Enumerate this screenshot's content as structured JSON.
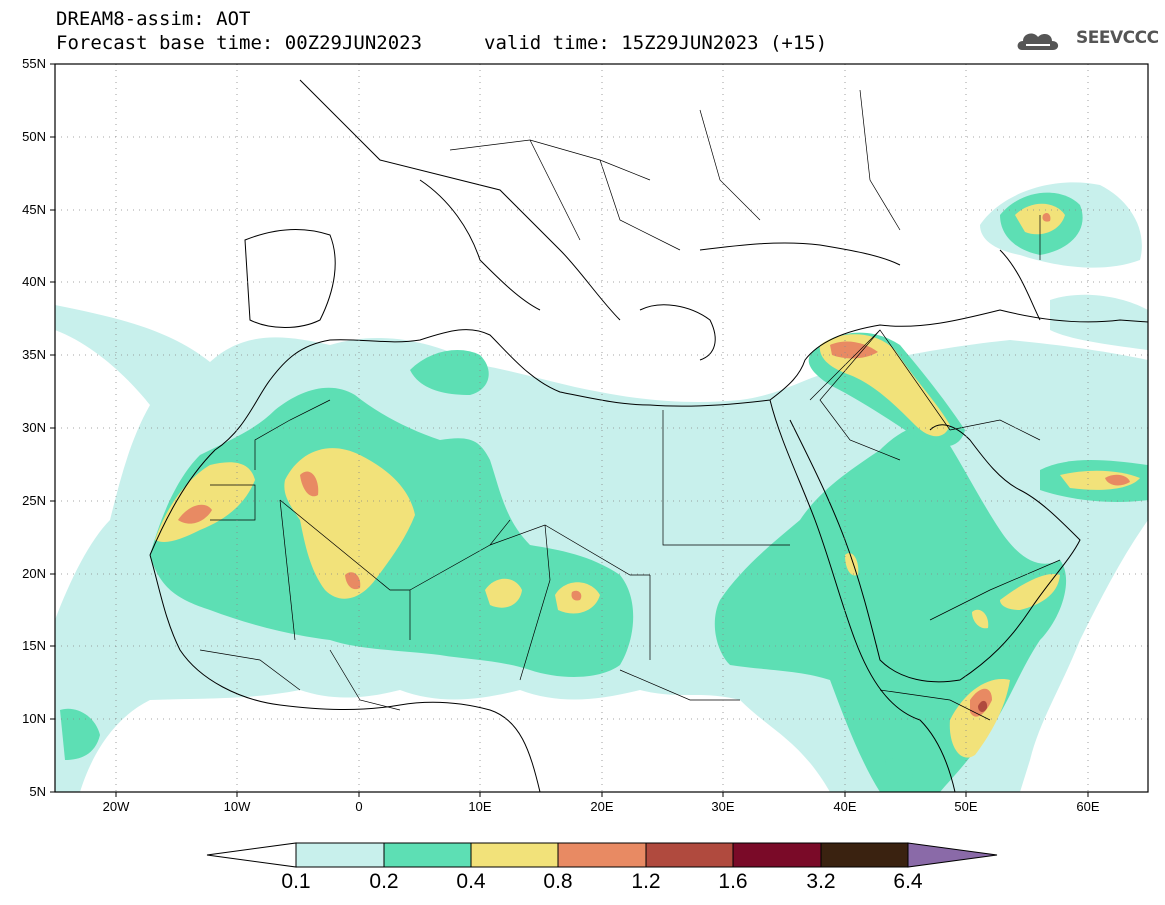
{
  "header": {
    "title": "DREAM8-assim: AOT",
    "base": "Forecast base time: 00Z29JUN2023",
    "valid": "valid time: 15Z29JUN2023 (+15)",
    "logo": "SEEVCCC"
  },
  "map": {
    "projection": "lat-lon",
    "lon_range": [
      -25,
      65
    ],
    "lat_range": [
      5,
      55
    ],
    "lat_ticks": [
      "55N",
      "50N",
      "45N",
      "40N",
      "35N",
      "30N",
      "25N",
      "20N",
      "15N",
      "10N",
      "5N"
    ],
    "lon_ticks": [
      "20W",
      "10W",
      "0",
      "10E",
      "20E",
      "30E",
      "40E",
      "50E",
      "60E"
    ]
  },
  "colorbar": {
    "labels": [
      "0.1",
      "0.2",
      "0.4",
      "0.8",
      "1.2",
      "1.6",
      "3.2",
      "6.4"
    ],
    "colors": [
      "#c8f0ec",
      "#5ddfb4",
      "#f2e27a",
      "#e88a63",
      "#b04a3e",
      "#7a0a28",
      "#3a2210",
      "#8a6aa8"
    ]
  },
  "contours": {
    "levels": [
      0.1,
      0.2,
      0.4,
      0.8
    ],
    "colors": [
      "#c8f0ec",
      "#5ddfb4",
      "#f2e27a",
      "#e88a63"
    ]
  }
}
